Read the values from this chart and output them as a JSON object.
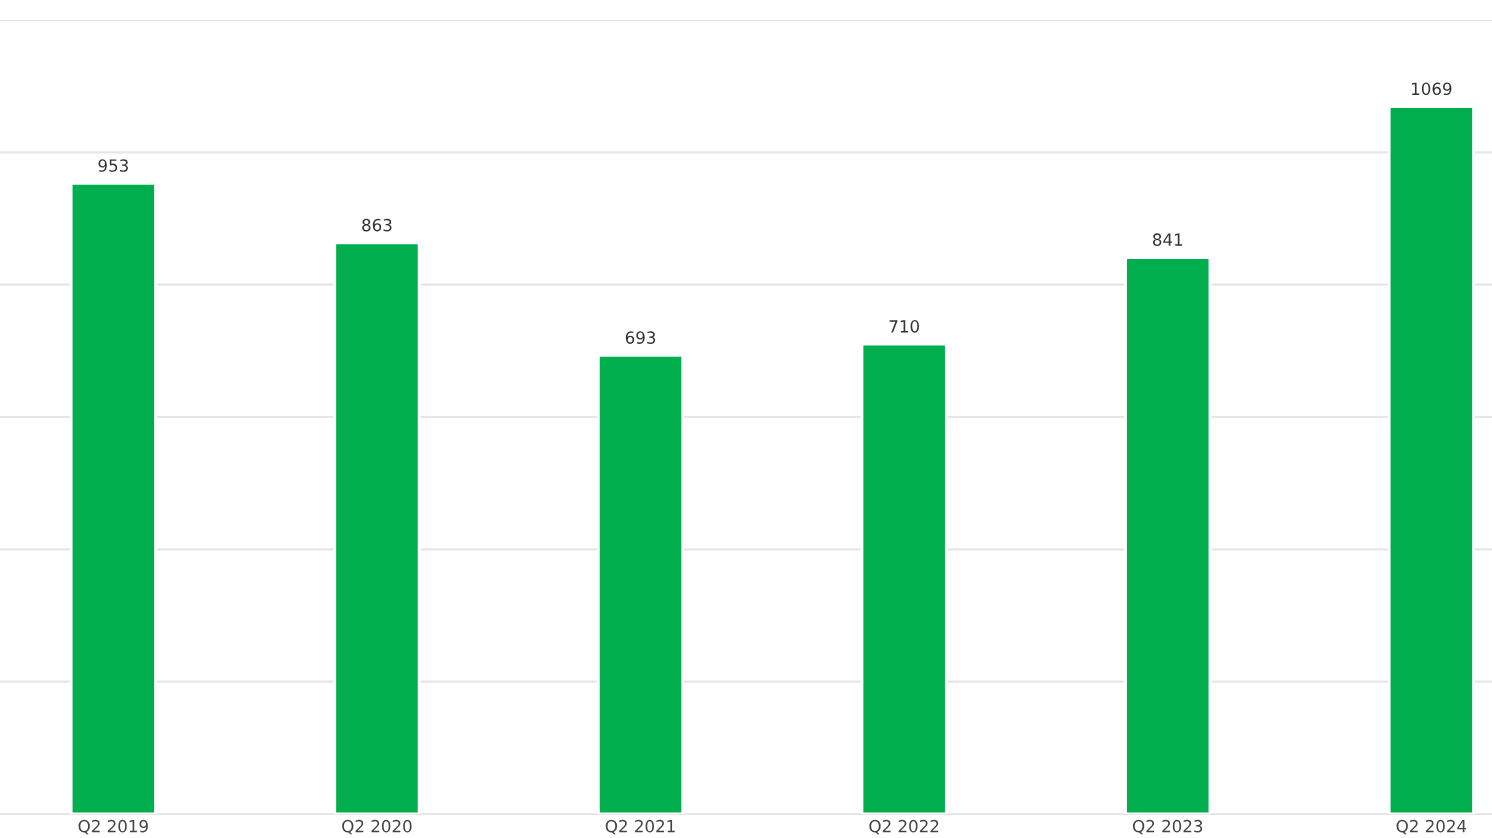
{
  "chart_data": {
    "type": "bar",
    "categories": [
      "Q2 2019",
      "Q2 2020",
      "Q2 2021",
      "Q2 2022",
      "Q2 2023",
      "Q2 2024"
    ],
    "values": [
      953,
      863,
      693,
      710,
      841,
      1069
    ],
    "color": "#00ae4d",
    "data_labels": true,
    "ylim": [
      0,
      1200
    ],
    "yticks": [
      {
        "value": 0,
        "label": null
      },
      {
        "value": 200,
        "label": null
      },
      {
        "value": 400,
        "label": null
      },
      {
        "value": 600,
        "label": null
      },
      {
        "value": 800,
        "label": null
      },
      {
        "value": 1000,
        "label": null
      },
      {
        "value": 1200,
        "label": null
      }
    ],
    "grid": "y",
    "tick_labels": "x"
  }
}
